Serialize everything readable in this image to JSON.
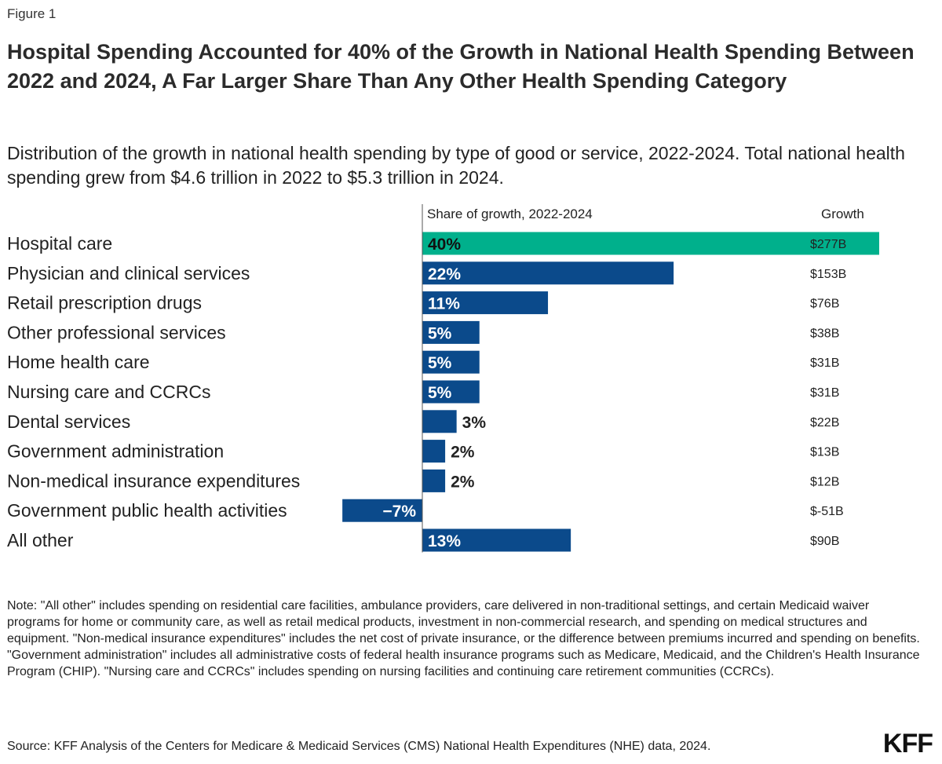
{
  "figure_label": "Figure 1",
  "title": "Hospital Spending Accounted for 40% of the Growth in National Health Spending Between 2022 and 2024, A Far Larger Share Than Any Other Health Spending Category",
  "subtitle": "Distribution of the growth in national health spending by type of good or service, 2022-2024. Total national health spending grew from $4.6 trillion in 2022 to $5.3 trillion in 2024.",
  "columns": {
    "share": "Share of growth, 2022-2024",
    "growth": "Growth"
  },
  "colors": {
    "highlight": "#00b08c",
    "bar": "#0b4a8b",
    "axis": "#555555"
  },
  "chart_data": {
    "type": "bar",
    "orientation": "horizontal",
    "title": "Share of growth, 2022-2024",
    "categories": [
      "Hospital care",
      "Physician and clinical services",
      "Retail prescription drugs",
      "Other professional services",
      "Home health care",
      "Nursing care and CCRCs",
      "Dental services",
      "Government administration",
      "Non-medical insurance expenditures",
      "Government public health activities",
      "All other"
    ],
    "values": [
      40,
      22,
      11,
      5,
      5,
      5,
      3,
      2,
      2,
      -7,
      13
    ],
    "value_labels": [
      "40%",
      "22%",
      "11%",
      "5%",
      "5%",
      "5%",
      "3%",
      "2%",
      "2%",
      "−7%",
      "13%"
    ],
    "growth_labels": [
      "$277B",
      "$153B",
      "$76B",
      "$38B",
      "$31B",
      "$31B",
      "$22B",
      "$13B",
      "$12B",
      "$-51B",
      "$90B"
    ],
    "growth_billions": [
      277,
      153,
      76,
      38,
      31,
      31,
      22,
      13,
      12,
      -51,
      90
    ],
    "highlight_index": 0,
    "xlim": [
      -7.5,
      40
    ]
  },
  "note": "Note: \"All other\" includes spending on residential care facilities, ambulance providers, care delivered in non-traditional settings, and certain Medicaid waiver programs for home or community care, as well as retail medical products, investment in non-commercial research, and spending on medical structures and equipment. \"Non-medical insurance expenditures\" includes the net cost of private insurance, or the difference between premiums incurred and spending on benefits. \"Government administration\" includes all administrative costs of federal health insurance programs such as Medicare, Medicaid, and the Children's Health Insurance Program (CHIP). \"Nursing care and CCRCs\" includes spending on nursing facilities and continuing care retirement communities (CCRCs).",
  "source": "Source: KFF Analysis of the Centers for Medicare & Medicaid Services (CMS) National Health Expenditures (NHE) data, 2024.",
  "logo_text": "KFF"
}
